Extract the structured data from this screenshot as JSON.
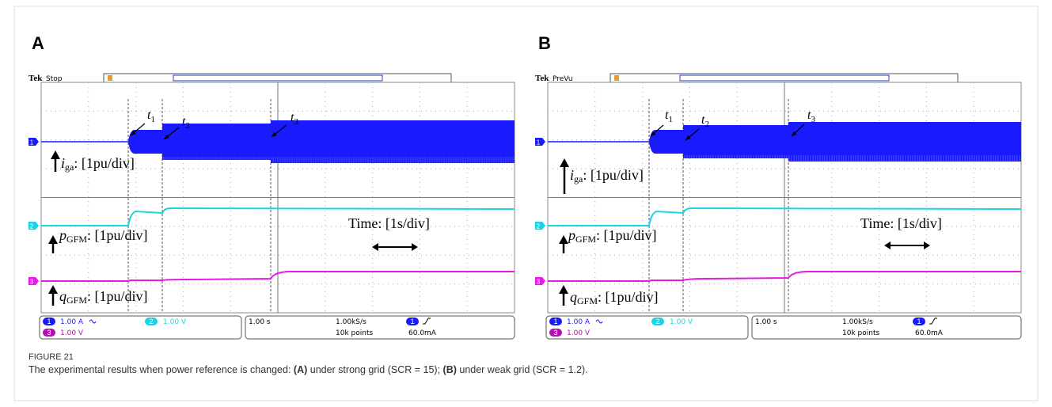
{
  "figure": {
    "label": "FIGURE 21",
    "caption": [
      {
        "text": "The experimental results when power reference is changed: "
      },
      {
        "text": "(A)",
        "bold": true
      },
      {
        "text": " under strong grid (SCR = 15); "
      },
      {
        "text": "(B)",
        "bold": true
      },
      {
        "text": " under weak grid (SCR = 1.2)."
      }
    ]
  },
  "panels": [
    {
      "letter": "A",
      "brand": "Tek",
      "status": "Stop",
      "markers": [
        {
          "symbol": "t",
          "sub": "1"
        },
        {
          "symbol": "t",
          "sub": "2"
        },
        {
          "symbol": "t",
          "sub": "3"
        }
      ],
      "labels": [
        {
          "symbol": "i",
          "sub": "ga",
          "suffix": ": [1pu/div]"
        },
        {
          "symbol": "p",
          "sub": "GFM",
          "suffix": ": [1pu/div]"
        },
        {
          "symbol": "q",
          "sub": "GFM",
          "suffix": ": [1pu/div]"
        }
      ],
      "time_label": "Time: [1s/div]",
      "channels": [
        "1",
        "2",
        "3"
      ],
      "readout": {
        "ch1_scale": "1.00 A",
        "ch2_scale": "1.00 V",
        "ch3_scale": "1.00 V",
        "timebase": "1.00 s",
        "sample_rate": "1.00kS/s",
        "record_length": "10k points",
        "trigger_level": "60.0mA"
      }
    },
    {
      "letter": "B",
      "brand": "Tek",
      "status": "PreVu",
      "markers": [
        {
          "symbol": "t",
          "sub": "1"
        },
        {
          "symbol": "t",
          "sub": "2"
        },
        {
          "symbol": "t",
          "sub": "3"
        }
      ],
      "labels": [
        {
          "symbol": "i",
          "sub": "ga",
          "suffix": ": [1pu/div]"
        },
        {
          "symbol": "p",
          "sub": "GFM",
          "suffix": ": [1pu/div]"
        },
        {
          "symbol": "q",
          "sub": "GFM",
          "suffix": ": [1pu/div]"
        }
      ],
      "time_label": "Time: [1s/div]",
      "channels": [
        "1",
        "2",
        "3"
      ],
      "readout": {
        "ch1_scale": "1.00 A",
        "ch2_scale": "1.00 V",
        "ch3_scale": "1.00 V",
        "timebase": "1.00 s",
        "sample_rate": "1.00kS/s",
        "record_length": "10k points",
        "trigger_level": "60.0mA"
      }
    }
  ]
}
